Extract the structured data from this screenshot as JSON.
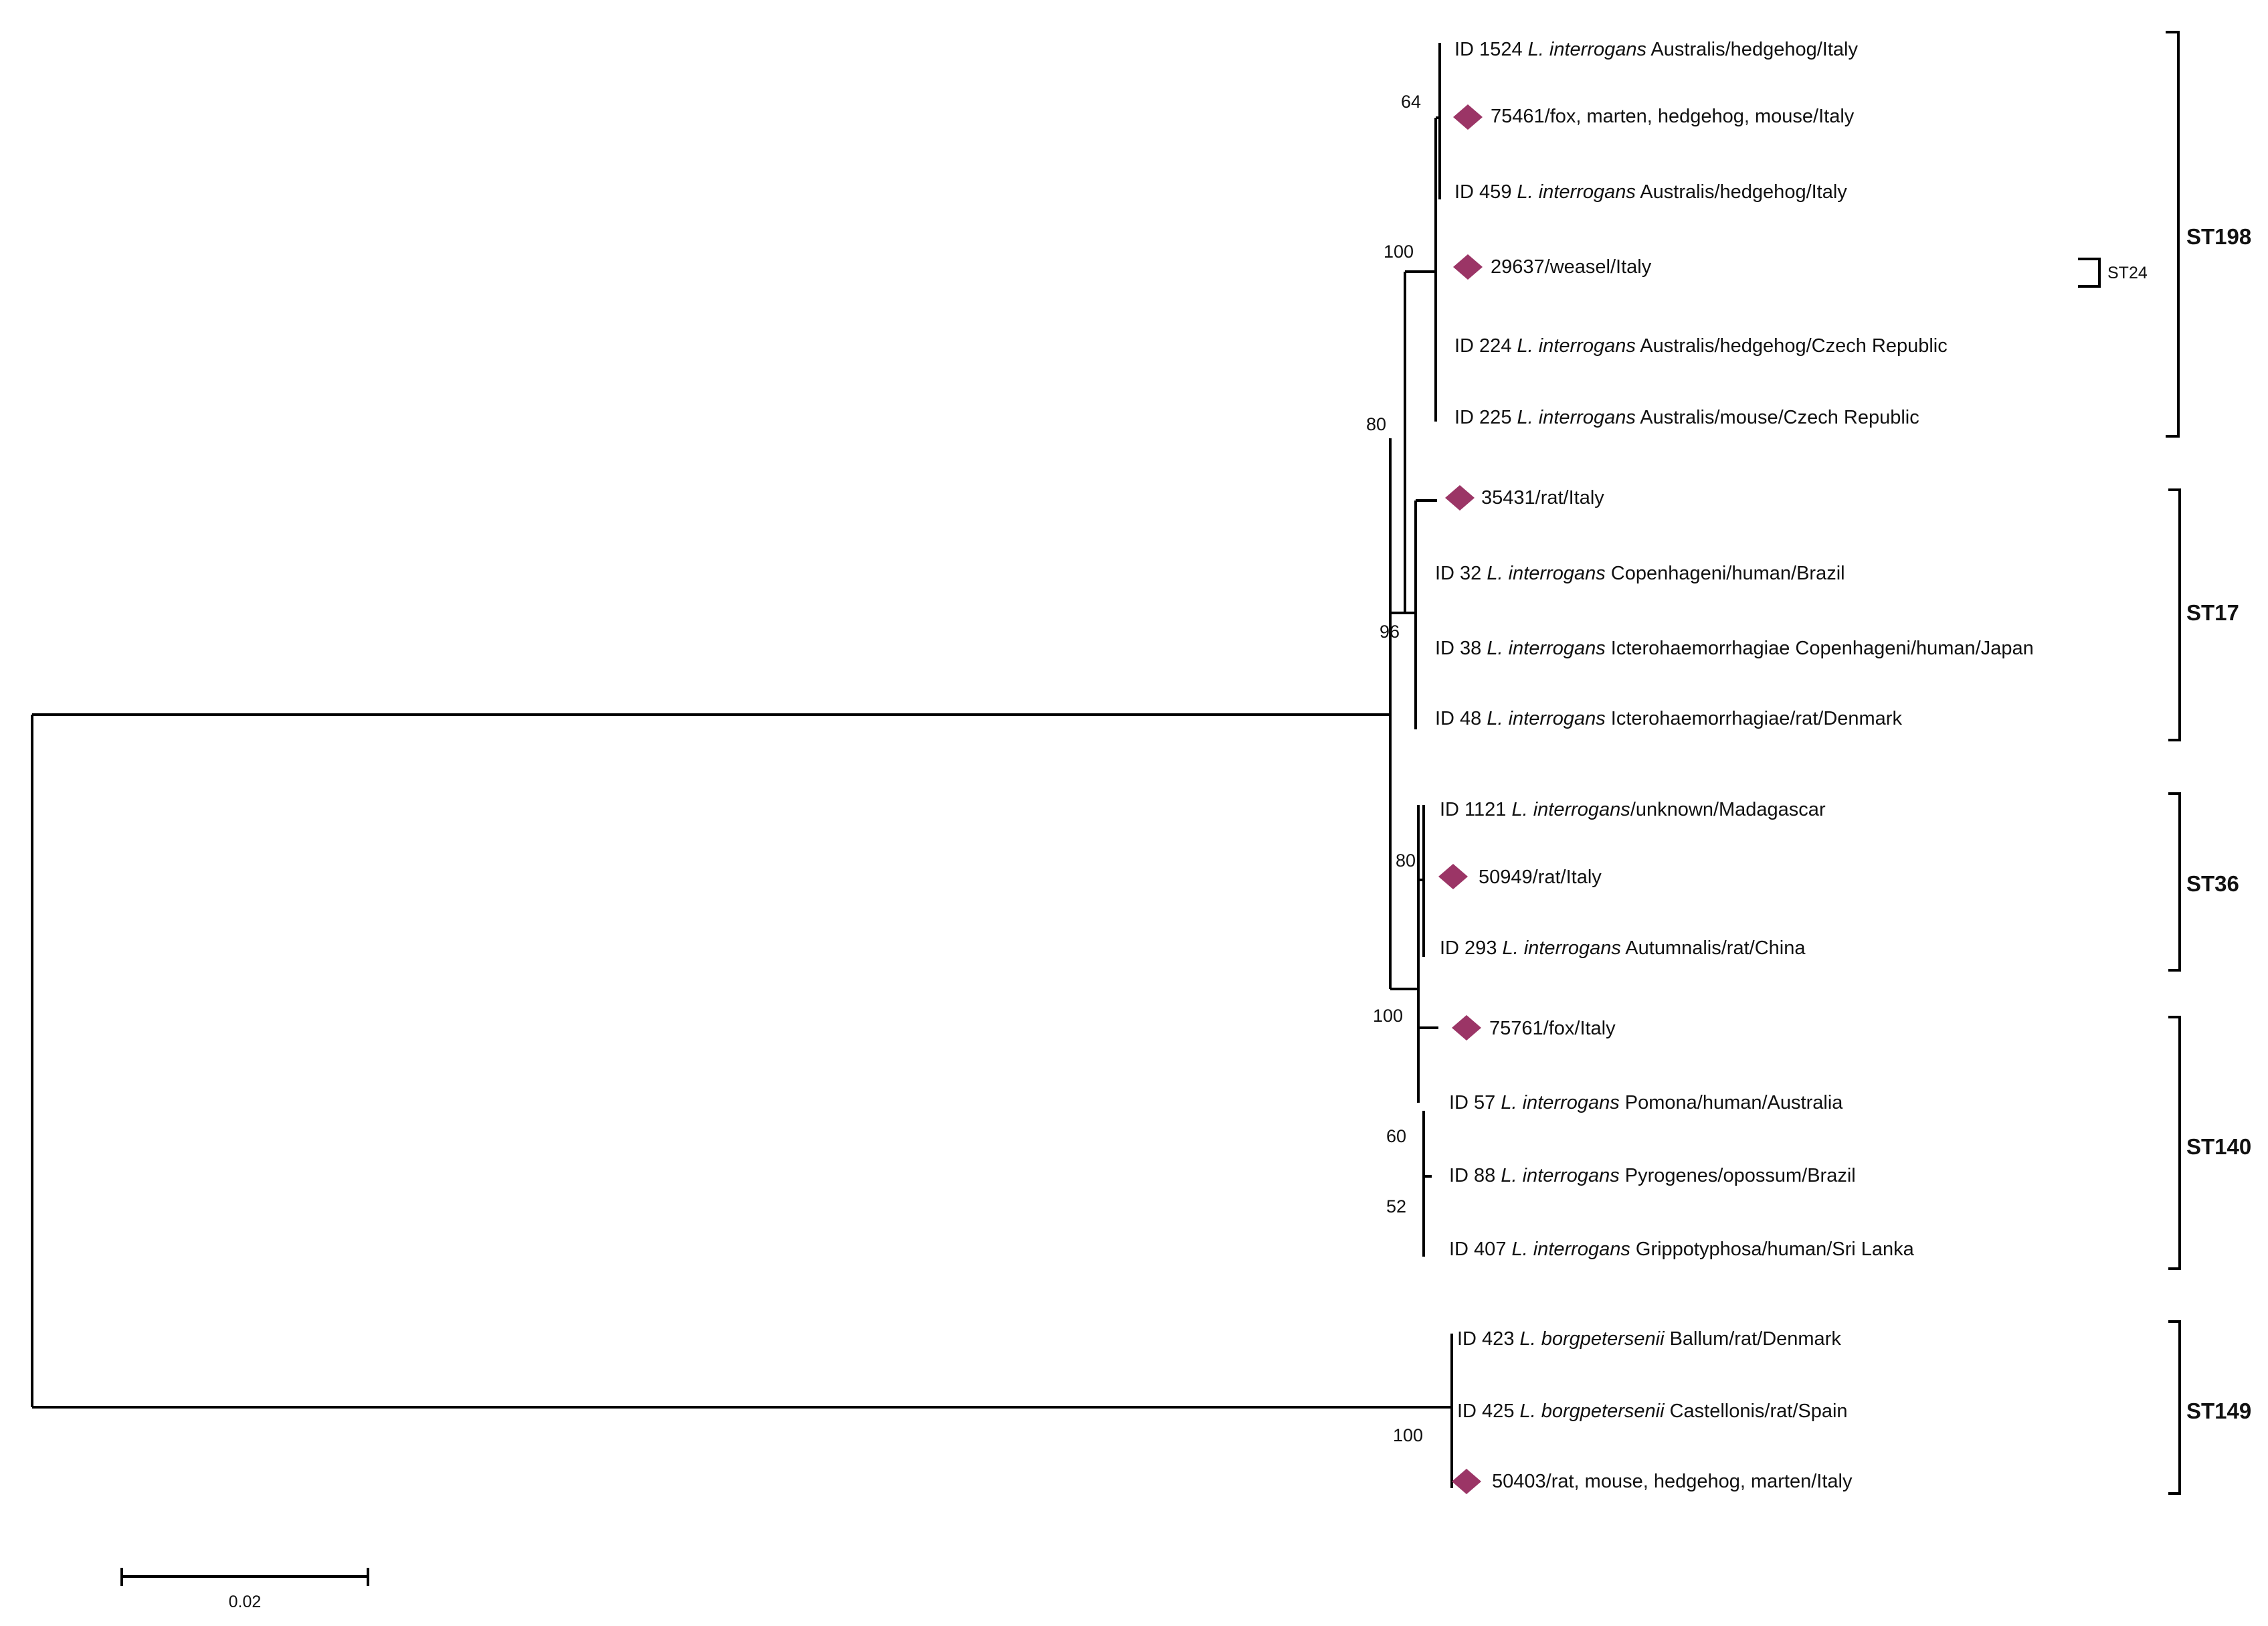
{
  "tree": {
    "leaves": [
      {
        "id": "leaf-1524",
        "prefix": "ID 1524 ",
        "species": "L. interrogans",
        "rest": " Australis/hedgehog/Italy",
        "marker": false
      },
      {
        "id": "leaf-75461",
        "prefix": "",
        "species": "",
        "rest": "75461/fox, marten, hedgehog, mouse/Italy",
        "marker": true
      },
      {
        "id": "leaf-459",
        "prefix": "ID 459 ",
        "species": "L. interrogans",
        "rest": " Australis/hedgehog/Italy",
        "marker": false
      },
      {
        "id": "leaf-29637",
        "prefix": "",
        "species": "",
        "rest": "29637/weasel/Italy",
        "marker": true
      },
      {
        "id": "leaf-224",
        "prefix": "ID 224 ",
        "species": "L. interrogans",
        "rest": " Australis/hedgehog/Czech Republic",
        "marker": false
      },
      {
        "id": "leaf-225",
        "prefix": "ID 225 ",
        "species": "L. interrogans",
        "rest": " Australis/mouse/Czech Republic",
        "marker": false
      },
      {
        "id": "leaf-35431",
        "prefix": "",
        "species": "",
        "rest": "35431/rat/Italy",
        "marker": true
      },
      {
        "id": "leaf-32",
        "prefix": "ID 32 ",
        "species": "L. interrogans",
        "rest": " Copenhageni/human/Brazil",
        "marker": false
      },
      {
        "id": "leaf-38",
        "prefix": "ID 38 ",
        "species": "L. interrogans",
        "rest": " Icterohaemorrhagiae Copenhageni/human/Japan",
        "marker": false
      },
      {
        "id": "leaf-48",
        "prefix": "ID 48 ",
        "species": "L. interrogans",
        "rest": " Icterohaemorrhagiae/rat/Denmark",
        "marker": false
      },
      {
        "id": "leaf-1121",
        "prefix": "ID 1121 ",
        "species": "L. interrogans",
        "rest": "/unknown/Madagascar",
        "marker": false
      },
      {
        "id": "leaf-50949",
        "prefix": "",
        "species": "",
        "rest": "50949/rat/Italy",
        "marker": true
      },
      {
        "id": "leaf-293",
        "prefix": "ID 293 ",
        "species": "L. interrogans",
        "rest": " Autumnalis/rat/China",
        "marker": false
      },
      {
        "id": "leaf-75761",
        "prefix": "",
        "species": "",
        "rest": "75761/fox/Italy",
        "marker": true
      },
      {
        "id": "leaf-57",
        "prefix": "ID 57 ",
        "species": "L. interrogans",
        "rest": " Pomona/human/Australia",
        "marker": false
      },
      {
        "id": "leaf-88",
        "prefix": "ID 88 ",
        "species": "L. interrogans",
        "rest": " Pyrogenes/opossum/Brazil",
        "marker": false
      },
      {
        "id": "leaf-407",
        "prefix": "ID 407 ",
        "species": "L. interrogans",
        "rest": " Grippotyphosa/human/Sri Lanka",
        "marker": false
      },
      {
        "id": "leaf-423",
        "prefix": "ID 423 ",
        "species": "L. borgpetersenii",
        "rest": " Ballum/rat/Denmark",
        "marker": false
      },
      {
        "id": "leaf-425",
        "prefix": "ID 425 ",
        "species": "L. borgpetersenii",
        "rest": " Castellonis/rat/Spain",
        "marker": false
      },
      {
        "id": "leaf-50403",
        "prefix": "",
        "species": "",
        "rest": "50403/rat, mouse, hedgehog, marten/Italy",
        "marker": true
      }
    ],
    "bootstrap": {
      "b64": "64",
      "b100a": "100",
      "b80a": "80",
      "b96": "96",
      "b80b": "80",
      "b100b": "100",
      "b60": "60",
      "b52": "52",
      "b100c": "100"
    },
    "clades": {
      "st198": "ST198",
      "st24": "ST24",
      "st17": "ST17",
      "st36": "ST36",
      "st140": "ST140",
      "st149": "ST149"
    },
    "scale_bar": "0.02",
    "marker_color": "#9b3566"
  }
}
